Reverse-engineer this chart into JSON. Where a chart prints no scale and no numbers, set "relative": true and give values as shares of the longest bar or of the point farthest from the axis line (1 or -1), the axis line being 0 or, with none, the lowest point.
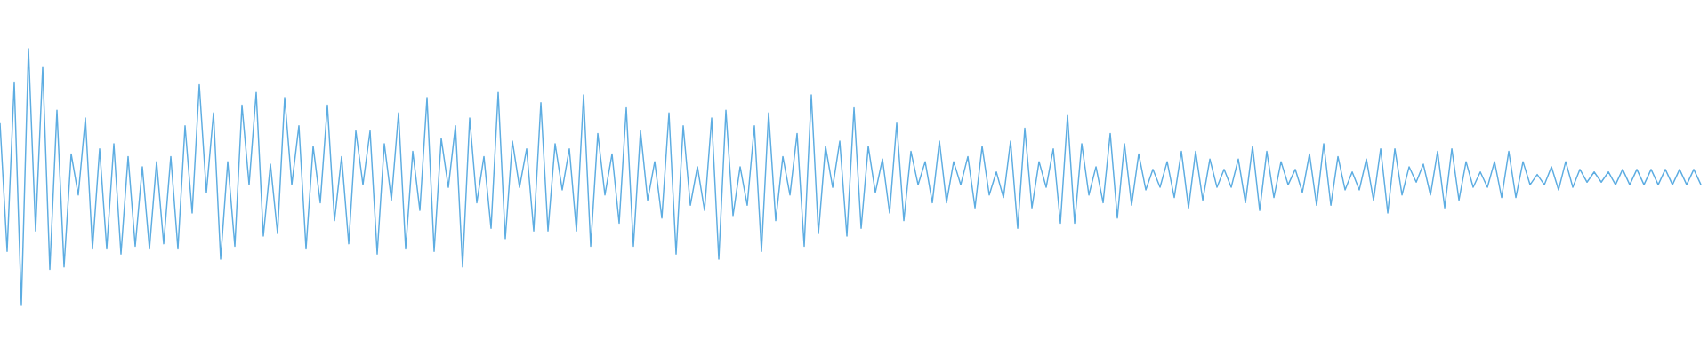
{
  "chart_data": {
    "type": "line",
    "relative": true,
    "categories": [
      null,
      null,
      null,
      null,
      null,
      null,
      null,
      null,
      null,
      null,
      null,
      null,
      null,
      null,
      null,
      null,
      null,
      null,
      null,
      null,
      null,
      null,
      null,
      null,
      null,
      null,
      null,
      null,
      null,
      null,
      null,
      null,
      null,
      null,
      null,
      null,
      null,
      null,
      null,
      null,
      null,
      null,
      null,
      null,
      null,
      null,
      null,
      null,
      null,
      null,
      null,
      null,
      null,
      null,
      null,
      null,
      null,
      null,
      null,
      null,
      null,
      null,
      null,
      null,
      null,
      null,
      null,
      null,
      null,
      null,
      null,
      null,
      null,
      null,
      null,
      null,
      null,
      null,
      null,
      null,
      null,
      null,
      null,
      null,
      null,
      null,
      null,
      null,
      null,
      null,
      null,
      null,
      null,
      null,
      null,
      null,
      null,
      null,
      null,
      null,
      null,
      null,
      null,
      null,
      null,
      null,
      null,
      null,
      null,
      null,
      null,
      null,
      null,
      null,
      null,
      null,
      null,
      null,
      null,
      null,
      null,
      null,
      null,
      null,
      null,
      null,
      null,
      null,
      null,
      null,
      null,
      null,
      null,
      null,
      null,
      null,
      null,
      null,
      null,
      null,
      null,
      null,
      null,
      null,
      null,
      null,
      null,
      null,
      null,
      null,
      null,
      null,
      null,
      null,
      null,
      null,
      null,
      null,
      null,
      null,
      null,
      null,
      null,
      null,
      null,
      null,
      null,
      null,
      null,
      null,
      null,
      null,
      null,
      null,
      null,
      null,
      null,
      null,
      null,
      null,
      null,
      null,
      null,
      null,
      null,
      null,
      null,
      null,
      null,
      null,
      null,
      null,
      null,
      null,
      null,
      null,
      null,
      null,
      null,
      null,
      null,
      null,
      null,
      null,
      null,
      null,
      null,
      null,
      null,
      null,
      null,
      null,
      null,
      null,
      null,
      null,
      null,
      null,
      null,
      null,
      null,
      null,
      null,
      null,
      null,
      null,
      null,
      null,
      null,
      null,
      null,
      null,
      null,
      null,
      null,
      null,
      null,
      null,
      null,
      null
    ],
    "series": [
      {
        "color": "#5dade2",
        "values": [
          0.71,
          0.21,
          0.87,
          0.0,
          1.0,
          0.29,
          0.93,
          0.14,
          0.76,
          0.15,
          0.59,
          0.43,
          0.73,
          0.22,
          0.61,
          0.22,
          0.63,
          0.2,
          0.58,
          0.23,
          0.54,
          0.22,
          0.56,
          0.24,
          0.58,
          0.22,
          0.7,
          0.36,
          0.86,
          0.44,
          0.75,
          0.18,
          0.56,
          0.23,
          0.78,
          0.47,
          0.83,
          0.27,
          0.55,
          0.28,
          0.81,
          0.47,
          0.7,
          0.22,
          0.62,
          0.4,
          0.78,
          0.33,
          0.58,
          0.24,
          0.68,
          0.47,
          0.68,
          0.2,
          0.63,
          0.41,
          0.75,
          0.22,
          0.6,
          0.37,
          0.81,
          0.21,
          0.65,
          0.46,
          0.7,
          0.15,
          0.73,
          0.4,
          0.58,
          0.3,
          0.83,
          0.26,
          0.64,
          0.46,
          0.61,
          0.29,
          0.79,
          0.29,
          0.63,
          0.45,
          0.61,
          0.29,
          0.82,
          0.23,
          0.67,
          0.43,
          0.59,
          0.32,
          0.77,
          0.23,
          0.68,
          0.41,
          0.56,
          0.34,
          0.75,
          0.2,
          0.7,
          0.39,
          0.54,
          0.37,
          0.73,
          0.18,
          0.76,
          0.35,
          0.54,
          0.39,
          0.7,
          0.21,
          0.75,
          0.33,
          0.58,
          0.43,
          0.67,
          0.23,
          0.82,
          0.28,
          0.62,
          0.46,
          0.64,
          0.27,
          0.77,
          0.3,
          0.62,
          0.44,
          0.57,
          0.36,
          0.71,
          0.33,
          0.6,
          0.47,
          0.56,
          0.4,
          0.64,
          0.4,
          0.56,
          0.47,
          0.58,
          0.38,
          0.62,
          0.43,
          0.52,
          0.42,
          0.64,
          0.3,
          0.69,
          0.38,
          0.56,
          0.46,
          0.61,
          0.32,
          0.74,
          0.32,
          0.63,
          0.43,
          0.54,
          0.4,
          0.67,
          0.34,
          0.63,
          0.39,
          0.59,
          0.45,
          0.53,
          0.46,
          0.56,
          0.42,
          0.6,
          0.38,
          0.6,
          0.41,
          0.57,
          0.46,
          0.53,
          0.46,
          0.57,
          0.4,
          0.62,
          0.37,
          0.6,
          0.42,
          0.56,
          0.47,
          0.53,
          0.44,
          0.59,
          0.39,
          0.63,
          0.39,
          0.58,
          0.45,
          0.52,
          0.45,
          0.57,
          0.41,
          0.61,
          0.36,
          0.61,
          0.43,
          0.54,
          0.48,
          0.55,
          0.43,
          0.6,
          0.38,
          0.61,
          0.41,
          0.56,
          0.46,
          0.52,
          0.46,
          0.56,
          0.42,
          0.6,
          0.42,
          0.56,
          0.47,
          0.51,
          0.47,
          0.54,
          0.45,
          0.56,
          0.46,
          0.53,
          0.48,
          0.52,
          0.48,
          0.52,
          0.47,
          0.53,
          0.47,
          0.53,
          0.47,
          0.53,
          0.47,
          0.53,
          0.47,
          0.53,
          0.47,
          0.53,
          0.47
        ]
      }
    ]
  }
}
